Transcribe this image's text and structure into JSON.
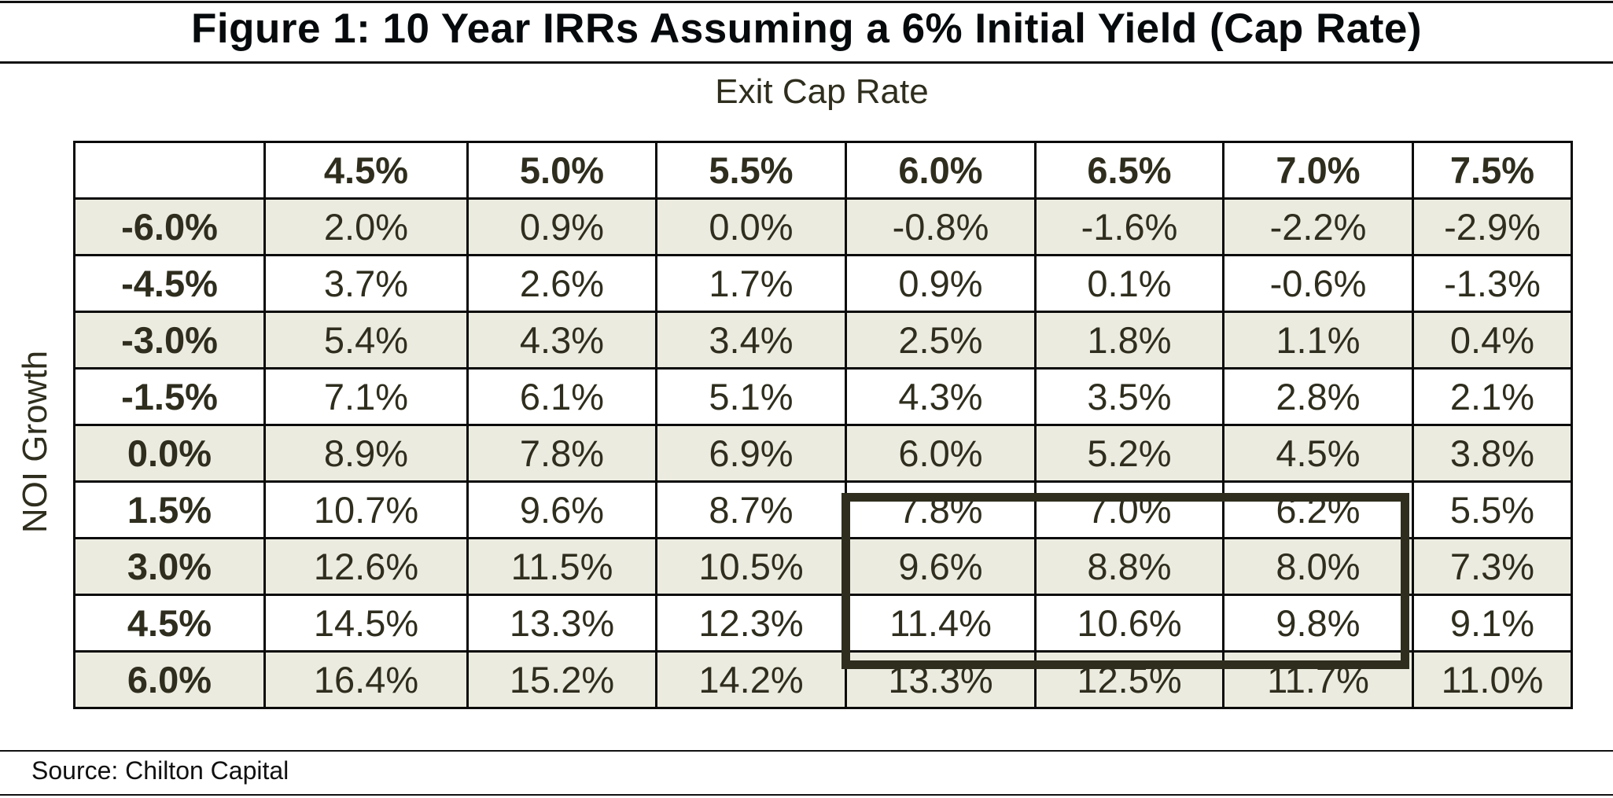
{
  "title": "Figure 1: 10 Year IRRs Assuming a 6% Initial Yield (Cap Rate)",
  "column_axis_label": "Exit Cap Rate",
  "row_axis_label": "NOI Growth",
  "columns": [
    "4.5%",
    "5.0%",
    "5.5%",
    "6.0%",
    "6.5%",
    "7.0%",
    "7.5%"
  ],
  "rows": [
    {
      "label": "-6.0%",
      "values": [
        "2.0%",
        "0.9%",
        "0.0%",
        "-0.8%",
        "-1.6%",
        "-2.2%",
        "-2.9%"
      ]
    },
    {
      "label": "-4.5%",
      "values": [
        "3.7%",
        "2.6%",
        "1.7%",
        "0.9%",
        "0.1%",
        "-0.6%",
        "-1.3%"
      ]
    },
    {
      "label": "-3.0%",
      "values": [
        "5.4%",
        "4.3%",
        "3.4%",
        "2.5%",
        "1.8%",
        "1.1%",
        "0.4%"
      ]
    },
    {
      "label": "-1.5%",
      "values": [
        "7.1%",
        "6.1%",
        "5.1%",
        "4.3%",
        "3.5%",
        "2.8%",
        "2.1%"
      ]
    },
    {
      "label": "0.0%",
      "values": [
        "8.9%",
        "7.8%",
        "6.9%",
        "6.0%",
        "5.2%",
        "4.5%",
        "3.8%"
      ]
    },
    {
      "label": "1.5%",
      "values": [
        "10.7%",
        "9.6%",
        "8.7%",
        "7.8%",
        "7.0%",
        "6.2%",
        "5.5%"
      ]
    },
    {
      "label": "3.0%",
      "values": [
        "12.6%",
        "11.5%",
        "10.5%",
        "9.6%",
        "8.8%",
        "8.0%",
        "7.3%"
      ]
    },
    {
      "label": "4.5%",
      "values": [
        "14.5%",
        "13.3%",
        "12.3%",
        "11.4%",
        "10.6%",
        "9.8%",
        "9.1%"
      ]
    },
    {
      "label": "6.0%",
      "values": [
        "16.4%",
        "15.2%",
        "14.2%",
        "13.3%",
        "12.5%",
        "11.7%",
        "11.0%"
      ]
    }
  ],
  "source": "Source: Chilton Capital",
  "colors": {
    "shade": "#ecebe0",
    "text": "#2f2e1e",
    "highlight_border": "#2f2e1e"
  }
}
